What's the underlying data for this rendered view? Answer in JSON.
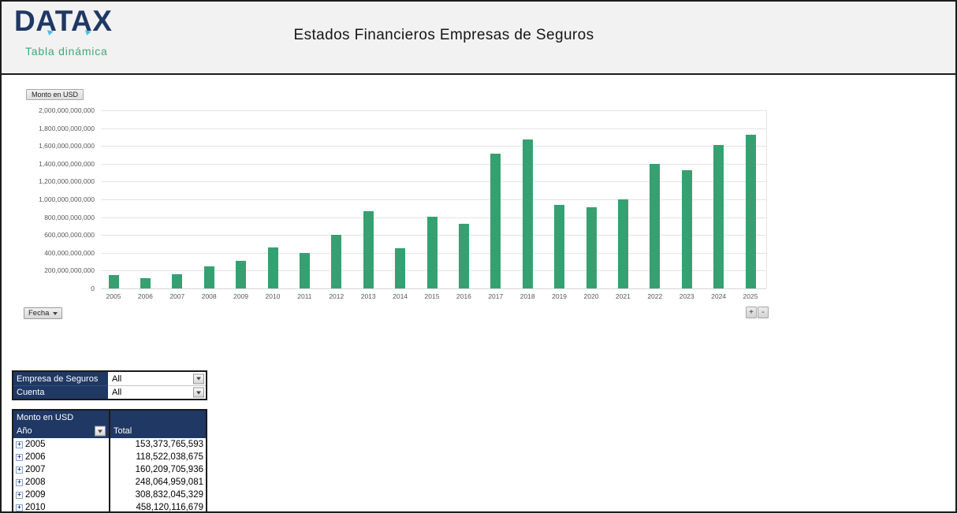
{
  "header": {
    "logo_text": "DATAX",
    "logo_subtitle": "Tabla dinámica",
    "title": "Estados Financieros Empresas de Seguros"
  },
  "chart": {
    "field_button": "Monto en USD",
    "axis_button": "Fecha",
    "expand_label": "+",
    "collapse_label": "-"
  },
  "chart_data": {
    "type": "bar",
    "title": "",
    "series_name": "Monto en USD",
    "categories": [
      "2005",
      "2006",
      "2007",
      "2008",
      "2009",
      "2010",
      "2011",
      "2012",
      "2013",
      "2014",
      "2015",
      "2016",
      "2017",
      "2018",
      "2019",
      "2020",
      "2021",
      "2022",
      "2023",
      "2024",
      "2025"
    ],
    "values": [
      153373765593,
      118522038675,
      160209705936,
      248064959081,
      308832045329,
      458120116679,
      400000000000,
      605000000000,
      870000000000,
      450000000000,
      805000000000,
      730000000000,
      1515000000000,
      1675000000000,
      935000000000,
      910000000000,
      1000000000000,
      1400000000000,
      1325000000000,
      1610000000000,
      1730000000000
    ],
    "ylim": [
      0,
      2000000000000
    ],
    "ytick_step": 200000000000,
    "yticklabels": [
      "0",
      "200,000,000,000",
      "400,000,000,000",
      "600,000,000,000",
      "800,000,000,000",
      "1,000,000,000,000",
      "1,200,000,000,000",
      "1,400,000,000,000",
      "1,600,000,000,000",
      "1,800,000,000,000",
      "2,000,000,000,000"
    ],
    "bar_color": "#36a071",
    "grid": true,
    "legend": false
  },
  "filters": {
    "rows": [
      {
        "label": "Empresa de Seguros",
        "value": "All"
      },
      {
        "label": "Cuenta",
        "value": "All"
      }
    ]
  },
  "pivot": {
    "values_label": "Monto en USD",
    "row_field_label": "Año",
    "col_total_label": "Total",
    "expand_glyph": "+",
    "rows": [
      {
        "year": "2005",
        "total": "153,373,765,593"
      },
      {
        "year": "2006",
        "total": "118,522,038,675"
      },
      {
        "year": "2007",
        "total": "160,209,705,936"
      },
      {
        "year": "2008",
        "total": "248,064,959,081"
      },
      {
        "year": "2009",
        "total": "308,832,045,329"
      },
      {
        "year": "2010",
        "total": "458,120,116,679"
      }
    ]
  }
}
